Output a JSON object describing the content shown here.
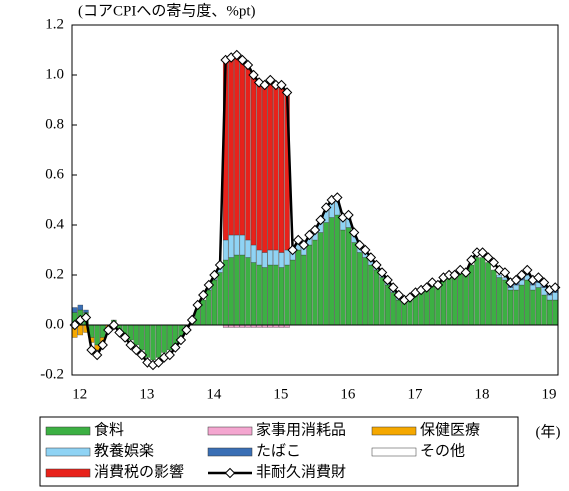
{
  "chart_data": {
    "type": "bar",
    "y_axis_label": "(コアCPIへの寄与度、%pt)",
    "x_axis_label": "(年)",
    "categories": [
      "12",
      null,
      null,
      null,
      null,
      null,
      null,
      null,
      null,
      null,
      null,
      null,
      "13",
      null,
      null,
      null,
      null,
      null,
      null,
      null,
      null,
      null,
      null,
      null,
      "14",
      null,
      null,
      null,
      null,
      null,
      null,
      null,
      null,
      null,
      null,
      null,
      "15",
      null,
      null,
      null,
      null,
      null,
      null,
      null,
      null,
      null,
      null,
      null,
      "16",
      null,
      null,
      null,
      null,
      null,
      null,
      null,
      null,
      null,
      null,
      null,
      "17",
      null,
      null,
      null,
      null,
      null,
      null,
      null,
      null,
      null,
      null,
      null,
      "18",
      null,
      null,
      null,
      null,
      null,
      null,
      null,
      null,
      null,
      null,
      null,
      "19",
      null,
      null
    ],
    "ylim": [
      -0.2,
      1.2
    ],
    "yticks": [
      -0.2,
      {
        "value": 0,
        "label": "0.0"
      },
      0.2,
      0.4,
      0.6,
      0.8,
      {
        "value": 1,
        "label": "1.0"
      },
      1.2
    ],
    "series": [
      {
        "name": "食料",
        "color": "#3cb043",
        "values": [
          0.05,
          0.06,
          0.05,
          -0.05,
          -0.08,
          -0.05,
          0,
          0.02,
          -0.02,
          -0.04,
          -0.06,
          -0.08,
          -0.1,
          -0.13,
          -0.14,
          -0.13,
          -0.11,
          -0.1,
          -0.08,
          -0.05,
          -0.02,
          0.02,
          0.07,
          0.1,
          0.14,
          0.18,
          0.21,
          0.26,
          0.27,
          0.28,
          0.28,
          0.27,
          0.25,
          0.24,
          0.23,
          0.24,
          0.24,
          0.23,
          0.24,
          0.26,
          0.3,
          0.28,
          0.32,
          0.34,
          0.37,
          0.41,
          0.43,
          0.44,
          0.38,
          0.39,
          0.33,
          0.29,
          0.27,
          0.24,
          0.22,
          0.19,
          0.16,
          0.13,
          0.1,
          0.09,
          0.1,
          0.12,
          0.13,
          0.14,
          0.16,
          0.15,
          0.18,
          0.19,
          0.19,
          0.21,
          0.2,
          0.24,
          0.27,
          0.27,
          0.25,
          0.22,
          0.19,
          0.18,
          0.14,
          0.14,
          0.16,
          0.18,
          0.14,
          0.15,
          0.12,
          0.1,
          0.1
        ]
      },
      {
        "name": "家事用消耗品",
        "color": "#f4a6d0",
        "values": [
          0,
          0,
          0,
          0,
          0,
          0,
          0,
          0,
          0,
          0,
          0,
          0,
          0,
          0,
          0,
          0,
          0,
          0,
          0,
          0,
          0,
          0,
          0,
          0,
          0,
          0,
          0,
          -0.01,
          -0.01,
          -0.01,
          -0.01,
          -0.01,
          -0.01,
          -0.01,
          -0.01,
          -0.01,
          -0.01,
          -0.01,
          -0.01,
          0,
          0,
          0,
          0,
          0,
          0,
          0,
          0,
          0,
          0,
          0,
          0,
          0,
          0,
          0,
          0,
          0,
          0,
          0,
          0,
          0,
          0,
          0,
          0,
          0,
          0,
          0,
          0,
          0,
          0,
          0,
          0,
          0,
          0,
          0,
          0,
          0,
          0,
          0,
          0,
          0,
          0,
          0,
          0,
          0,
          0,
          0,
          0
        ]
      },
      {
        "name": "保健医療",
        "color": "#f5a800",
        "values": [
          -0.05,
          -0.04,
          -0.03,
          -0.02,
          -0.02,
          -0.02,
          -0.01,
          0,
          0,
          0,
          0,
          0,
          0,
          0,
          0,
          0,
          0,
          0,
          0,
          0,
          0,
          0,
          0,
          0,
          0,
          0,
          0,
          0,
          0,
          0,
          0,
          0,
          0,
          0,
          0,
          0,
          0,
          0,
          0,
          0,
          0,
          0,
          0,
          0,
          0,
          0,
          0,
          0,
          0,
          0,
          0,
          0,
          0,
          0,
          0,
          0,
          0,
          0,
          0,
          0,
          0,
          0,
          0,
          0,
          0,
          0,
          0,
          0,
          0,
          0,
          0,
          0,
          0,
          0,
          0,
          0,
          0,
          0,
          0,
          0,
          0,
          0,
          0,
          0,
          0,
          0,
          0
        ]
      },
      {
        "name": "教養娯楽",
        "color": "#8fd3f4",
        "values": [
          0,
          0,
          0,
          0,
          0,
          0,
          0,
          0,
          0,
          0,
          0,
          0,
          0,
          0,
          0,
          0,
          0,
          0,
          0,
          0,
          0,
          0,
          0,
          0,
          0.01,
          0.01,
          0.02,
          0.08,
          0.09,
          0.08,
          0.08,
          0.07,
          0.07,
          0.06,
          0.06,
          0.06,
          0.06,
          0.06,
          0.06,
          0.03,
          0.03,
          0.03,
          0.03,
          0.04,
          0.04,
          0.05,
          0.06,
          0.06,
          0.04,
          0.04,
          0.03,
          0.02,
          0.02,
          0.02,
          0.01,
          0.01,
          0.01,
          0.01,
          0.01,
          0,
          0,
          0,
          0,
          0,
          0,
          0,
          0,
          0,
          0,
          0,
          0,
          0,
          0,
          0,
          0,
          0,
          0.01,
          0.01,
          0.01,
          0.02,
          0.02,
          0.02,
          0.02,
          0.02,
          0.03,
          0.02,
          0.03
        ]
      },
      {
        "name": "たばこ",
        "color": "#3a6fb5",
        "values": [
          0.02,
          0.02,
          0.01,
          0,
          0,
          0,
          0,
          0,
          0,
          0,
          0,
          0,
          0,
          0,
          0,
          0,
          0,
          0,
          0,
          0,
          0,
          0,
          0,
          0,
          0,
          0,
          0,
          0,
          0,
          0,
          0,
          0,
          0,
          0,
          0,
          0,
          0,
          0,
          0,
          0,
          0,
          0,
          0.01,
          0.01,
          0.01,
          0.01,
          0.01,
          0.01,
          0.01,
          0.01,
          0.01,
          0,
          0,
          0,
          0,
          0,
          0,
          0,
          0,
          0,
          0,
          0,
          0,
          0,
          0,
          0,
          0,
          0,
          0,
          0,
          0,
          0,
          0,
          0,
          0,
          0,
          0,
          0,
          0.01,
          0.01,
          0.01,
          0.01,
          0.01,
          0.01,
          0.02,
          0.02,
          0.02
        ]
      },
      {
        "name": "その他",
        "color": "#ffffff",
        "values": [
          0,
          0,
          0,
          0,
          0,
          0,
          0,
          0,
          0,
          0,
          0,
          0,
          0,
          0,
          0,
          0,
          0,
          0,
          0,
          0,
          0,
          0,
          0,
          0,
          0,
          0,
          0,
          0,
          0,
          0,
          0,
          0,
          0,
          0,
          0,
          0,
          0,
          0,
          0,
          0,
          0,
          0,
          0,
          0,
          0,
          0,
          0,
          0,
          0,
          0,
          0,
          0,
          0,
          0,
          0,
          0,
          0,
          0,
          0,
          0,
          0,
          0,
          0,
          0,
          0,
          0,
          0,
          0,
          0,
          0,
          0,
          0,
          0,
          0,
          0,
          0,
          0,
          0,
          0,
          0,
          0,
          0,
          0,
          0,
          0,
          0,
          0
        ]
      },
      {
        "name": "消費税の影響",
        "color": "#e8221b",
        "values": [
          0,
          0,
          0,
          0,
          0,
          0,
          0,
          0,
          0,
          0,
          0,
          0,
          0,
          0,
          0,
          0,
          0,
          0,
          0,
          0,
          0,
          0,
          0,
          0,
          0,
          0,
          0,
          0.73,
          0.72,
          0.73,
          0.71,
          0.71,
          0.69,
          0.68,
          0.67,
          0.69,
          0.67,
          0.68,
          0.64,
          0,
          0,
          0,
          0,
          0,
          0,
          0,
          0,
          0,
          0,
          0,
          0,
          0,
          0,
          0,
          0,
          0,
          0,
          0,
          0,
          0,
          0,
          0,
          0,
          0,
          0,
          0,
          0,
          0,
          0,
          0,
          0,
          0,
          0,
          0,
          0,
          0,
          0,
          0,
          0,
          0,
          0,
          0,
          0,
          0,
          0,
          0,
          0
        ]
      },
      {
        "name": "非耐久消費財",
        "type": "line",
        "color": "#000000",
        "values": [
          0,
          0.02,
          0.03,
          -0.1,
          -0.12,
          -0.08,
          -0.02,
          0,
          -0.03,
          -0.05,
          -0.08,
          -0.1,
          -0.12,
          -0.15,
          -0.16,
          -0.15,
          -0.13,
          -0.12,
          -0.09,
          -0.06,
          -0.02,
          0.02,
          0.08,
          0.12,
          0.16,
          0.2,
          0.24,
          1.06,
          1.07,
          1.08,
          1.06,
          1.04,
          1,
          0.97,
          0.96,
          0.98,
          0.96,
          0.96,
          0.93,
          0.3,
          0.34,
          0.32,
          0.36,
          0.38,
          0.42,
          0.47,
          0.5,
          0.51,
          0.43,
          0.44,
          0.37,
          0.32,
          0.3,
          0.27,
          0.24,
          0.21,
          0.18,
          0.15,
          0.12,
          0.1,
          0.11,
          0.13,
          0.14,
          0.15,
          0.17,
          0.16,
          0.19,
          0.2,
          0.2,
          0.22,
          0.21,
          0.26,
          0.29,
          0.29,
          0.27,
          0.25,
          0.22,
          0.21,
          0.17,
          0.18,
          0.2,
          0.22,
          0.18,
          0.19,
          0.17,
          0.14,
          0.15
        ]
      }
    ]
  }
}
